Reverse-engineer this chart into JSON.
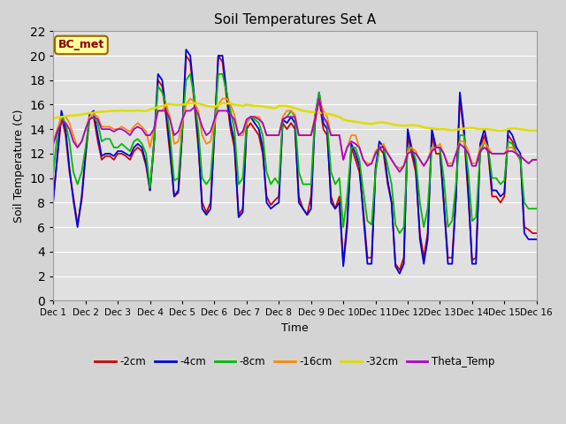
{
  "title": "Soil Temperatures Set A",
  "xlabel": "Time",
  "ylabel": "Soil Temperature (C)",
  "ylim": [
    0,
    22
  ],
  "xlim": [
    0,
    15
  ],
  "x_tick_labels": [
    "Dec 1",
    "Dec 2",
    "Dec 3",
    "Dec 4",
    "Dec 5",
    "Dec 6",
    "Dec 7",
    "Dec 8",
    "Dec 9",
    "Dec 10",
    "Dec 11",
    "Dec 12",
    "Dec 13",
    "Dec 14",
    "Dec 15",
    "Dec 16"
  ],
  "fig_facecolor": "#d4d4d4",
  "ax_facecolor": "#e0e0e0",
  "legend_label": "BC_met",
  "series_colors": {
    "neg2cm": "#cc0000",
    "neg4cm": "#0000dd",
    "neg8cm": "#00bb00",
    "neg16cm": "#ff8800",
    "neg32cm": "#dddd00",
    "theta": "#aa00cc"
  },
  "series_labels": [
    "-2cm",
    "-4cm",
    "-8cm",
    "-16cm",
    "-32cm",
    "Theta_Temp"
  ],
  "series_linewidths": [
    1.3,
    1.3,
    1.3,
    1.3,
    1.8,
    1.3
  ],
  "grid_color": "#ffffff",
  "grid_alpha": 1.0,
  "neg2cm_xp": [
    0,
    0.12,
    0.25,
    0.38,
    0.5,
    0.62,
    0.75,
    0.88,
    1.0,
    1.12,
    1.25,
    1.38,
    1.5,
    1.62,
    1.75,
    1.88,
    2.0,
    2.12,
    2.25,
    2.38,
    2.5,
    2.62,
    2.75,
    2.88,
    3.0,
    3.12,
    3.25,
    3.38,
    3.5,
    3.62,
    3.75,
    3.88,
    4.0,
    4.12,
    4.25,
    4.38,
    4.5,
    4.62,
    4.75,
    4.88,
    5.0,
    5.12,
    5.25,
    5.38,
    5.5,
    5.62,
    5.75,
    5.88,
    6.0,
    6.12,
    6.25,
    6.38,
    6.5,
    6.62,
    6.75,
    6.88,
    7.0,
    7.12,
    7.25,
    7.38,
    7.5,
    7.62,
    7.75,
    7.88,
    8.0,
    8.12,
    8.25,
    8.38,
    8.5,
    8.62,
    8.75,
    8.88,
    9.0,
    9.12,
    9.25,
    9.38,
    9.5,
    9.62,
    9.75,
    9.88,
    10.0,
    10.12,
    10.25,
    10.38,
    10.5,
    10.62,
    10.75,
    10.88,
    11.0,
    11.12,
    11.25,
    11.38,
    11.5,
    11.62,
    11.75,
    11.88,
    12.0,
    12.12,
    12.25,
    12.38,
    12.5,
    12.62,
    12.75,
    12.88,
    13.0,
    13.12,
    13.25,
    13.38,
    13.5,
    13.62,
    13.75,
    13.88,
    14.0,
    14.12,
    14.25,
    14.38,
    14.5,
    14.62,
    14.75,
    14.88,
    15.0
  ],
  "neg2cm_yp": [
    8.5,
    11.5,
    15.0,
    13.5,
    10.5,
    8.5,
    6.2,
    8.2,
    11.8,
    14.8,
    15.0,
    13.0,
    11.5,
    11.8,
    11.8,
    11.5,
    12.0,
    12.0,
    11.8,
    11.5,
    12.2,
    12.5,
    12.2,
    11.0,
    9.0,
    12.5,
    18.0,
    17.5,
    15.0,
    12.0,
    8.5,
    8.8,
    13.5,
    20.0,
    19.5,
    16.0,
    12.5,
    8.0,
    7.2,
    8.0,
    13.5,
    20.0,
    19.5,
    16.5,
    14.0,
    12.5,
    7.0,
    7.5,
    14.0,
    14.5,
    14.0,
    13.5,
    12.0,
    8.5,
    7.8,
    8.2,
    8.5,
    14.5,
    14.0,
    14.5,
    14.0,
    8.5,
    7.5,
    7.0,
    8.5,
    14.5,
    16.5,
    14.0,
    13.5,
    8.5,
    7.5,
    8.5,
    3.0,
    6.5,
    12.5,
    11.5,
    10.5,
    7.5,
    3.5,
    3.5,
    10.5,
    12.5,
    12.0,
    9.5,
    8.0,
    3.0,
    2.5,
    3.5,
    13.5,
    12.0,
    10.5,
    5.5,
    3.5,
    5.5,
    13.5,
    12.0,
    12.0,
    8.0,
    3.5,
    3.5,
    8.5,
    16.5,
    13.5,
    8.5,
    3.3,
    3.5,
    12.5,
    13.5,
    12.0,
    8.5,
    8.5,
    8.0,
    8.5,
    13.5,
    13.0,
    12.0,
    11.5,
    6.0,
    5.8,
    5.5,
    5.5
  ],
  "neg4cm_yp": [
    8.2,
    11.8,
    15.5,
    14.0,
    10.8,
    8.2,
    6.0,
    8.5,
    12.0,
    15.2,
    15.5,
    13.5,
    11.8,
    12.0,
    12.0,
    11.8,
    12.2,
    12.2,
    12.0,
    11.8,
    12.5,
    12.8,
    12.5,
    11.2,
    9.0,
    12.8,
    18.5,
    18.0,
    15.5,
    12.5,
    8.5,
    9.0,
    13.8,
    20.5,
    20.0,
    16.5,
    13.0,
    7.5,
    7.0,
    7.5,
    13.8,
    20.0,
    20.0,
    17.0,
    14.5,
    13.0,
    6.8,
    7.2,
    14.5,
    15.0,
    14.5,
    14.0,
    12.5,
    8.0,
    7.5,
    7.8,
    8.0,
    14.8,
    14.5,
    15.0,
    14.5,
    8.0,
    7.5,
    7.0,
    7.5,
    15.0,
    17.0,
    14.5,
    14.0,
    8.0,
    7.5,
    8.0,
    2.8,
    6.0,
    12.8,
    12.0,
    11.0,
    7.0,
    3.0,
    3.0,
    10.8,
    13.0,
    12.5,
    9.8,
    8.0,
    2.8,
    2.2,
    3.0,
    14.0,
    12.5,
    11.0,
    5.0,
    3.0,
    5.0,
    14.0,
    12.5,
    12.5,
    8.0,
    3.0,
    3.0,
    8.5,
    17.0,
    14.0,
    9.0,
    3.0,
    3.0,
    12.8,
    14.0,
    12.5,
    9.0,
    9.0,
    8.5,
    8.8,
    14.0,
    13.5,
    12.5,
    12.0,
    5.5,
    5.0,
    5.0,
    5.0
  ],
  "neg8cm_yp": [
    10.5,
    13.5,
    15.0,
    14.5,
    13.0,
    10.5,
    9.5,
    10.5,
    12.5,
    14.8,
    15.0,
    14.5,
    13.0,
    13.2,
    13.2,
    12.5,
    12.5,
    12.8,
    12.5,
    12.2,
    13.0,
    13.2,
    12.8,
    12.0,
    9.2,
    12.8,
    17.5,
    17.0,
    16.0,
    13.5,
    9.8,
    10.0,
    14.0,
    18.0,
    18.5,
    16.5,
    14.0,
    10.0,
    9.5,
    10.0,
    14.0,
    18.5,
    18.5,
    17.0,
    15.5,
    14.0,
    9.5,
    10.0,
    14.5,
    15.0,
    14.8,
    14.5,
    13.5,
    10.5,
    9.5,
    10.0,
    9.5,
    14.8,
    15.0,
    15.5,
    15.0,
    10.5,
    9.5,
    9.5,
    9.5,
    15.0,
    17.0,
    15.0,
    14.5,
    10.5,
    9.5,
    10.0,
    6.0,
    8.5,
    12.5,
    12.5,
    11.5,
    9.0,
    6.5,
    6.2,
    10.5,
    12.5,
    12.5,
    11.0,
    9.5,
    6.2,
    5.5,
    6.0,
    12.5,
    12.5,
    11.5,
    8.0,
    6.0,
    7.5,
    12.5,
    12.5,
    12.5,
    10.0,
    6.0,
    6.5,
    9.5,
    13.5,
    13.5,
    10.5,
    6.5,
    6.8,
    12.0,
    13.0,
    12.5,
    10.0,
    10.0,
    9.5,
    9.8,
    13.0,
    12.8,
    12.0,
    11.5,
    8.0,
    7.5,
    7.5,
    7.5
  ],
  "neg16cm_yp": [
    13.0,
    14.0,
    15.0,
    15.0,
    14.5,
    13.5,
    12.5,
    13.0,
    14.0,
    15.0,
    15.2,
    15.0,
    14.2,
    14.2,
    14.2,
    14.0,
    14.0,
    14.2,
    14.0,
    13.8,
    14.2,
    14.5,
    14.2,
    13.8,
    12.5,
    14.0,
    15.5,
    15.5,
    16.0,
    15.0,
    12.8,
    13.0,
    14.5,
    16.0,
    16.5,
    16.2,
    15.5,
    13.5,
    12.8,
    13.0,
    14.5,
    16.0,
    16.5,
    16.5,
    16.0,
    15.2,
    13.5,
    13.5,
    14.5,
    15.0,
    15.0,
    15.0,
    14.5,
    13.5,
    13.5,
    13.5,
    13.5,
    15.0,
    15.5,
    15.5,
    15.2,
    13.5,
    13.5,
    13.5,
    13.5,
    15.0,
    16.5,
    15.5,
    15.0,
    13.5,
    13.5,
    13.5,
    11.5,
    12.5,
    13.5,
    13.5,
    12.5,
    11.5,
    11.2,
    11.2,
    12.2,
    12.5,
    12.8,
    12.0,
    11.5,
    11.0,
    10.8,
    11.0,
    12.2,
    12.5,
    12.2,
    11.5,
    11.0,
    11.5,
    12.5,
    12.5,
    12.8,
    12.0,
    11.2,
    11.2,
    12.0,
    13.0,
    13.0,
    12.2,
    11.2,
    11.2,
    12.5,
    13.0,
    12.5,
    12.0,
    12.0,
    12.0,
    12.0,
    12.5,
    12.5,
    12.0,
    11.8,
    11.5,
    11.2,
    11.5,
    11.5
  ],
  "neg32cm_yp": [
    14.9,
    14.95,
    15.0,
    15.05,
    15.1,
    15.12,
    15.15,
    15.2,
    15.25,
    15.3,
    15.35,
    15.4,
    15.42,
    15.45,
    15.47,
    15.5,
    15.5,
    15.52,
    15.5,
    15.5,
    15.5,
    15.52,
    15.5,
    15.48,
    15.6,
    15.7,
    15.8,
    15.9,
    16.0,
    16.05,
    16.0,
    15.98,
    16.0,
    16.05,
    16.1,
    16.1,
    16.1,
    16.0,
    15.9,
    15.85,
    15.8,
    16.0,
    16.1,
    16.1,
    16.1,
    16.0,
    15.95,
    15.9,
    16.0,
    15.95,
    15.9,
    15.9,
    15.85,
    15.8,
    15.75,
    15.7,
    15.9,
    15.9,
    15.9,
    15.8,
    15.7,
    15.6,
    15.5,
    15.45,
    15.4,
    15.4,
    15.35,
    15.3,
    15.25,
    15.2,
    15.1,
    15.0,
    14.8,
    14.7,
    14.65,
    14.6,
    14.55,
    14.5,
    14.45,
    14.42,
    14.5,
    14.55,
    14.55,
    14.5,
    14.4,
    14.35,
    14.3,
    14.28,
    14.3,
    14.32,
    14.3,
    14.25,
    14.15,
    14.1,
    14.05,
    14.0,
    14.0,
    14.0,
    13.95,
    13.9,
    13.95,
    14.0,
    14.05,
    14.1,
    14.1,
    14.05,
    14.0,
    14.0,
    14.0,
    13.95,
    13.9,
    13.88,
    13.9,
    14.0,
    14.05,
    14.05,
    14.0,
    13.95,
    13.9,
    13.9,
    13.9
  ],
  "theta_yp": [
    12.8,
    13.8,
    14.5,
    14.5,
    14.0,
    13.0,
    12.5,
    13.0,
    14.0,
    14.8,
    15.0,
    14.8,
    14.0,
    14.0,
    14.0,
    13.8,
    14.0,
    14.0,
    13.8,
    13.5,
    14.0,
    14.2,
    14.0,
    13.5,
    13.5,
    14.0,
    15.5,
    15.5,
    15.5,
    14.8,
    13.5,
    13.8,
    14.8,
    15.5,
    15.5,
    15.8,
    15.2,
    14.2,
    13.5,
    13.8,
    14.8,
    15.5,
    15.5,
    15.5,
    15.2,
    14.8,
    13.5,
    13.8,
    14.8,
    15.0,
    15.0,
    14.8,
    14.5,
    13.5,
    13.5,
    13.5,
    13.5,
    14.8,
    15.0,
    15.0,
    15.0,
    13.5,
    13.5,
    13.5,
    13.5,
    14.8,
    16.5,
    15.0,
    14.5,
    13.5,
    13.5,
    13.5,
    11.5,
    12.5,
    13.0,
    12.8,
    12.5,
    11.5,
    11.0,
    11.2,
    12.0,
    12.5,
    12.5,
    12.0,
    11.5,
    11.0,
    10.5,
    11.0,
    12.0,
    12.2,
    12.0,
    11.5,
    11.0,
    11.5,
    12.2,
    12.5,
    12.5,
    12.0,
    11.0,
    11.0,
    12.0,
    12.8,
    12.5,
    12.0,
    11.0,
    11.0,
    12.2,
    12.5,
    12.2,
    12.0,
    12.0,
    12.0,
    12.0,
    12.2,
    12.2,
    12.0,
    11.8,
    11.5,
    11.2,
    11.5,
    11.5
  ]
}
